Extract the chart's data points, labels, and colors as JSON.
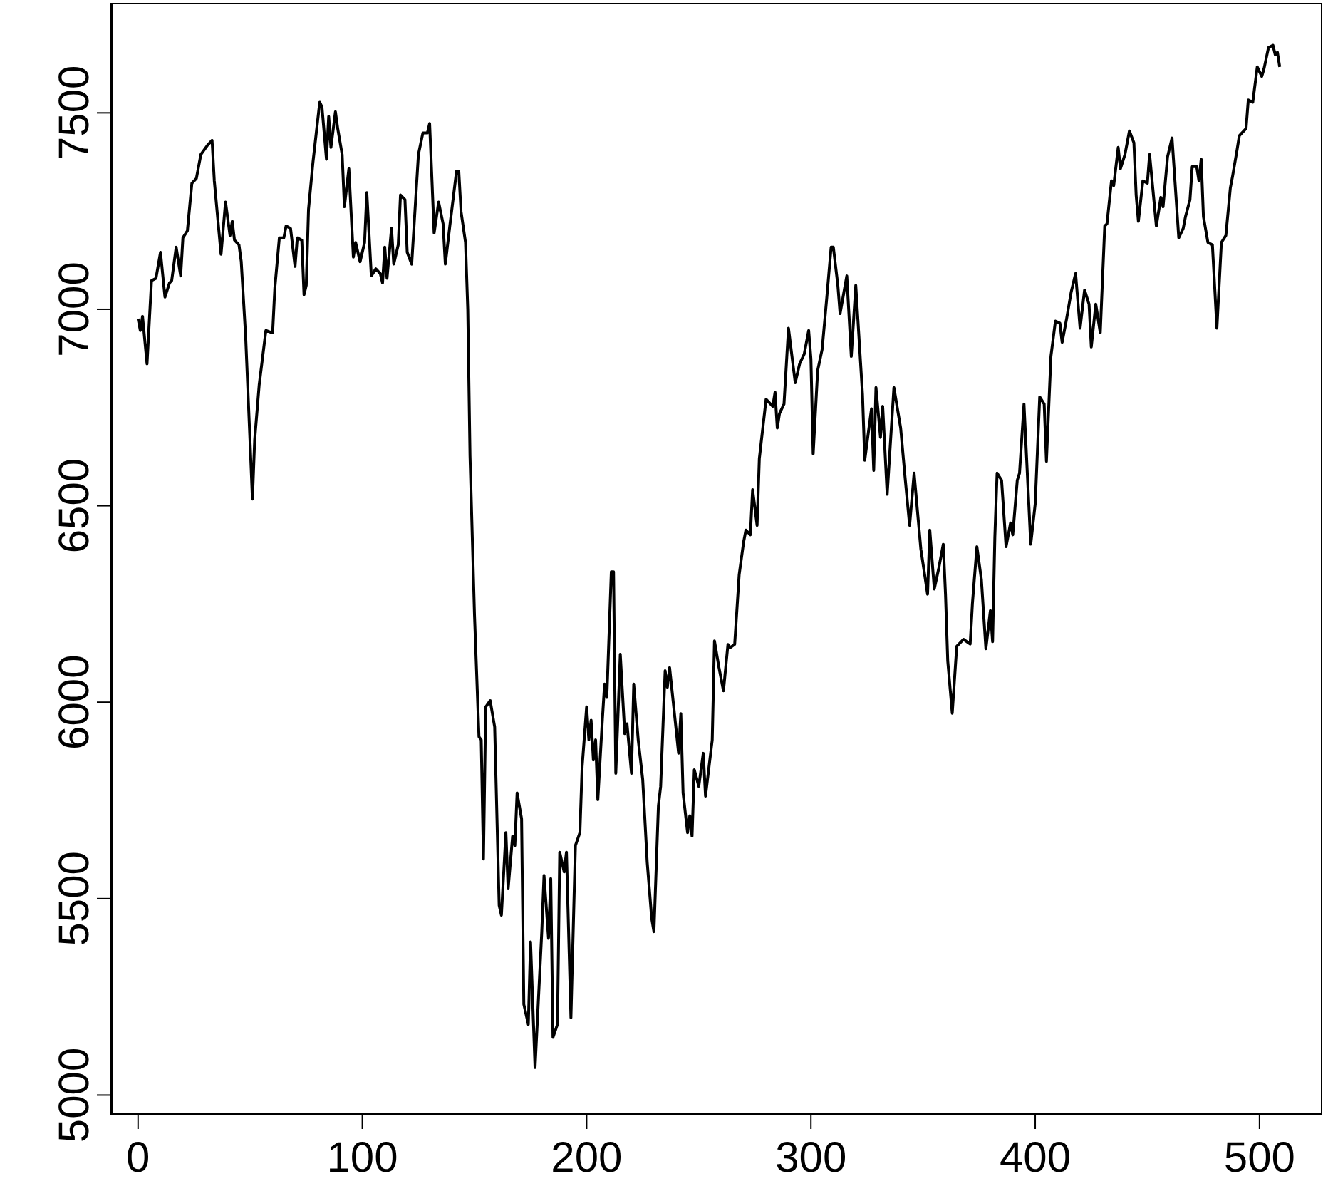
{
  "chart_data": {
    "type": "line",
    "x": [
      0,
      1,
      2,
      4,
      6,
      8,
      10,
      12,
      14,
      15,
      17,
      19,
      20,
      22,
      24,
      26,
      28,
      31,
      33,
      34,
      37,
      39,
      41,
      42,
      43,
      45,
      46,
      48,
      51,
      52,
      54,
      57,
      60,
      61,
      63,
      65,
      66,
      68,
      70,
      71,
      73,
      74,
      75,
      76,
      78,
      81,
      82,
      84,
      85,
      86,
      88,
      89,
      91,
      92,
      94,
      96,
      97,
      99,
      101,
      102,
      104,
      106,
      108,
      109,
      110,
      111,
      113,
      114,
      116,
      117,
      119,
      120,
      122,
      125,
      127,
      129,
      130,
      132,
      134,
      136,
      137,
      139,
      142,
      143,
      144,
      146,
      147,
      148,
      150,
      152,
      153,
      154,
      155,
      157,
      159,
      161,
      162,
      164,
      165,
      167,
      168,
      169,
      171,
      172,
      174,
      175,
      177,
      180,
      181,
      183,
      184,
      185,
      187,
      188,
      190,
      191,
      193,
      195,
      197,
      198,
      200,
      201,
      202,
      203,
      204,
      205,
      207,
      208,
      209,
      211,
      212,
      213,
      215,
      217,
      218,
      220,
      221,
      223,
      225,
      227,
      229,
      230,
      232,
      233,
      235,
      236,
      237,
      239,
      241,
      242,
      243,
      245,
      246,
      247,
      248,
      250,
      252,
      253,
      256,
      257,
      259,
      261,
      263,
      264,
      266,
      268,
      270,
      271,
      273,
      274,
      276,
      277,
      280,
      283,
      284,
      285,
      286,
      288,
      290,
      293,
      295,
      297,
      299,
      300,
      301,
      303,
      305,
      307,
      309,
      310,
      312,
      313,
      316,
      318,
      320,
      323,
      324,
      327,
      328,
      329,
      331,
      332,
      334,
      337,
      340,
      342,
      344,
      346,
      349,
      352,
      353,
      355,
      357,
      359,
      360,
      361,
      363,
      365,
      368,
      371,
      372,
      374,
      376,
      378,
      380,
      381,
      382,
      383,
      385,
      387,
      389,
      390,
      392,
      393,
      395,
      398,
      400,
      402,
      404,
      405,
      407,
      409,
      411,
      412,
      414,
      416,
      418,
      420,
      422,
      424,
      425,
      427,
      429,
      431,
      432,
      434,
      435,
      437,
      438,
      440,
      442,
      444,
      445,
      446,
      448,
      450,
      451,
      453,
      454,
      456,
      457,
      459,
      461,
      462,
      464,
      466,
      467,
      469,
      470,
      472,
      473,
      474,
      475,
      477,
      479,
      481,
      483,
      485,
      487,
      488,
      490,
      491,
      494,
      495,
      497,
      499,
      501,
      502,
      504,
      506,
      507,
      508,
      509
    ],
    "series": [
      {
        "color": "#000000",
        "values": [
          6976,
          6946,
          6982,
          6861,
          7073,
          7079,
          7145,
          7031,
          7067,
          7073,
          7158,
          7085,
          7182,
          7200,
          7321,
          7333,
          7394,
          7418,
          7430,
          7327,
          7140,
          7273,
          7188,
          7224,
          7176,
          7164,
          7122,
          6928,
          6517,
          6668,
          6807,
          6946,
          6940,
          7055,
          7182,
          7182,
          7212,
          7206,
          7109,
          7182,
          7176,
          7037,
          7061,
          7254,
          7375,
          7527,
          7515,
          7382,
          7491,
          7412,
          7503,
          7461,
          7394,
          7261,
          7358,
          7133,
          7170,
          7121,
          7170,
          7297,
          7085,
          7103,
          7091,
          7067,
          7158,
          7079,
          7206,
          7115,
          7164,
          7291,
          7279,
          7145,
          7115,
          7394,
          7449,
          7449,
          7473,
          7194,
          7273,
          7218,
          7115,
          7212,
          7352,
          7352,
          7249,
          7170,
          7000,
          6627,
          6223,
          5912,
          5904,
          5601,
          5988,
          6004,
          5937,
          5483,
          5458,
          5668,
          5525,
          5659,
          5635,
          5769,
          5703,
          5231,
          5180,
          5390,
          5070,
          5416,
          5559,
          5399,
          5551,
          5147,
          5180,
          5618,
          5568,
          5618,
          5197,
          5635,
          5668,
          5836,
          5988,
          5904,
          5954,
          5853,
          5904,
          5752,
          5954,
          6046,
          6012,
          6332,
          6332,
          5819,
          6122,
          5920,
          5945,
          5819,
          6046,
          5904,
          5803,
          5593,
          5450,
          5416,
          5736,
          5786,
          6080,
          6038,
          6088,
          5979,
          5870,
          5971,
          5769,
          5668,
          5711,
          5659,
          5828,
          5786,
          5870,
          5761,
          5904,
          6156,
          6088,
          6029,
          6147,
          6139,
          6147,
          6324,
          6408,
          6438,
          6426,
          6541,
          6450,
          6620,
          6771,
          6753,
          6789,
          6698,
          6735,
          6759,
          6952,
          6813,
          6862,
          6886,
          6946,
          6874,
          6632,
          6844,
          6898,
          7025,
          7158,
          7158,
          7061,
          6989,
          7085,
          6880,
          7061,
          6783,
          6616,
          6747,
          6590,
          6801,
          6674,
          6753,
          6529,
          6801,
          6698,
          6571,
          6450,
          6583,
          6390,
          6275,
          6438,
          6288,
          6341,
          6402,
          6275,
          6105,
          5972,
          6142,
          6160,
          6148,
          6251,
          6396,
          6312,
          6136,
          6233,
          6154,
          6420,
          6583,
          6565,
          6396,
          6456,
          6426,
          6565,
          6583,
          6759,
          6402,
          6505,
          6777,
          6759,
          6613,
          6880,
          6970,
          6965,
          6916,
          6976,
          7043,
          7091,
          6952,
          7049,
          7013,
          6904,
          7013,
          6940,
          7212,
          7218,
          7327,
          7315,
          7412,
          7358,
          7394,
          7454,
          7424,
          7291,
          7224,
          7327,
          7321,
          7394,
          7273,
          7212,
          7285,
          7261,
          7388,
          7436,
          7352,
          7182,
          7206,
          7236,
          7279,
          7363,
          7363,
          7327,
          7382,
          7236,
          7170,
          7164,
          6952,
          7170,
          7188,
          7309,
          7339,
          7406,
          7442,
          7460,
          7533,
          7527,
          7617,
          7593,
          7612,
          7666,
          7672,
          7648,
          7654,
          7617
        ]
      }
    ],
    "xlim": [
      -12,
      528
    ],
    "xticks": [
      0,
      100,
      200,
      300,
      400,
      500
    ],
    "ylim": [
      4950,
      7780
    ],
    "yticks": [
      5000,
      5500,
      6000,
      6500,
      7000,
      7500
    ],
    "grid": false,
    "marker": "none",
    "line_style": "solid"
  }
}
